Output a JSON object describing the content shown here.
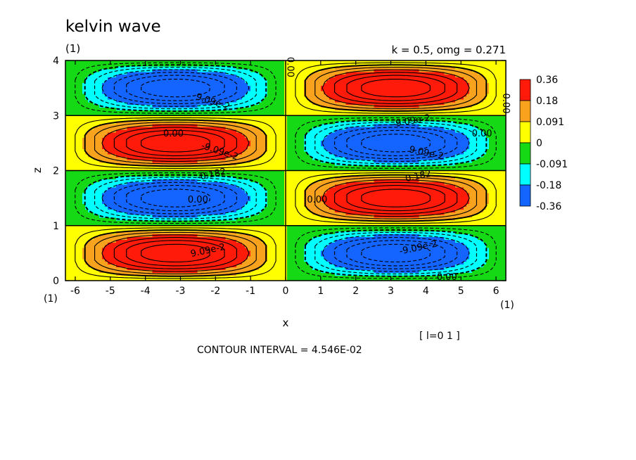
{
  "chart_data": {
    "type": "contour",
    "title": "kelvin wave",
    "panel_label": "(1)",
    "subtitle": "k = 0.5, omg = 0.271",
    "xlabel": "x",
    "ylabel": "z",
    "xlim": [
      -6.28,
      6.28
    ],
    "ylim": [
      0,
      4
    ],
    "xticks": [
      -6,
      -5,
      -4,
      -3,
      -2,
      -1,
      0,
      1,
      2,
      3,
      4,
      5,
      6
    ],
    "yticks": [
      0,
      1,
      2,
      3,
      4
    ],
    "left_bottom_label": "(1)",
    "right_bottom_label": "(1)",
    "index_label": "[ l=0 1 ]",
    "contour_interval_text": "CONTOUR INTERVAL = 4.546E-02",
    "field": {
      "formula": "amplitude * sin(k*x) * sin(pi*z)",
      "k": 0.5,
      "amplitude": 0.3637,
      "sign": -1
    },
    "contour_labels": [
      "9.09e-2",
      "0.00",
      "-9.09e-2",
      "-0.182",
      "0.182"
    ],
    "colorbar": {
      "labels": [
        "0.36",
        "0.18",
        "0.091",
        "0",
        "-0.091",
        "-0.18",
        "-0.36"
      ],
      "levels": [
        0.36,
        0.18,
        0.091,
        0,
        -0.091,
        -0.18,
        -0.36
      ],
      "colors": [
        "#ff1a0a",
        "#f8a21e",
        "#ffff00",
        "#14d914",
        "#00ffff",
        "#1464ff"
      ]
    }
  }
}
